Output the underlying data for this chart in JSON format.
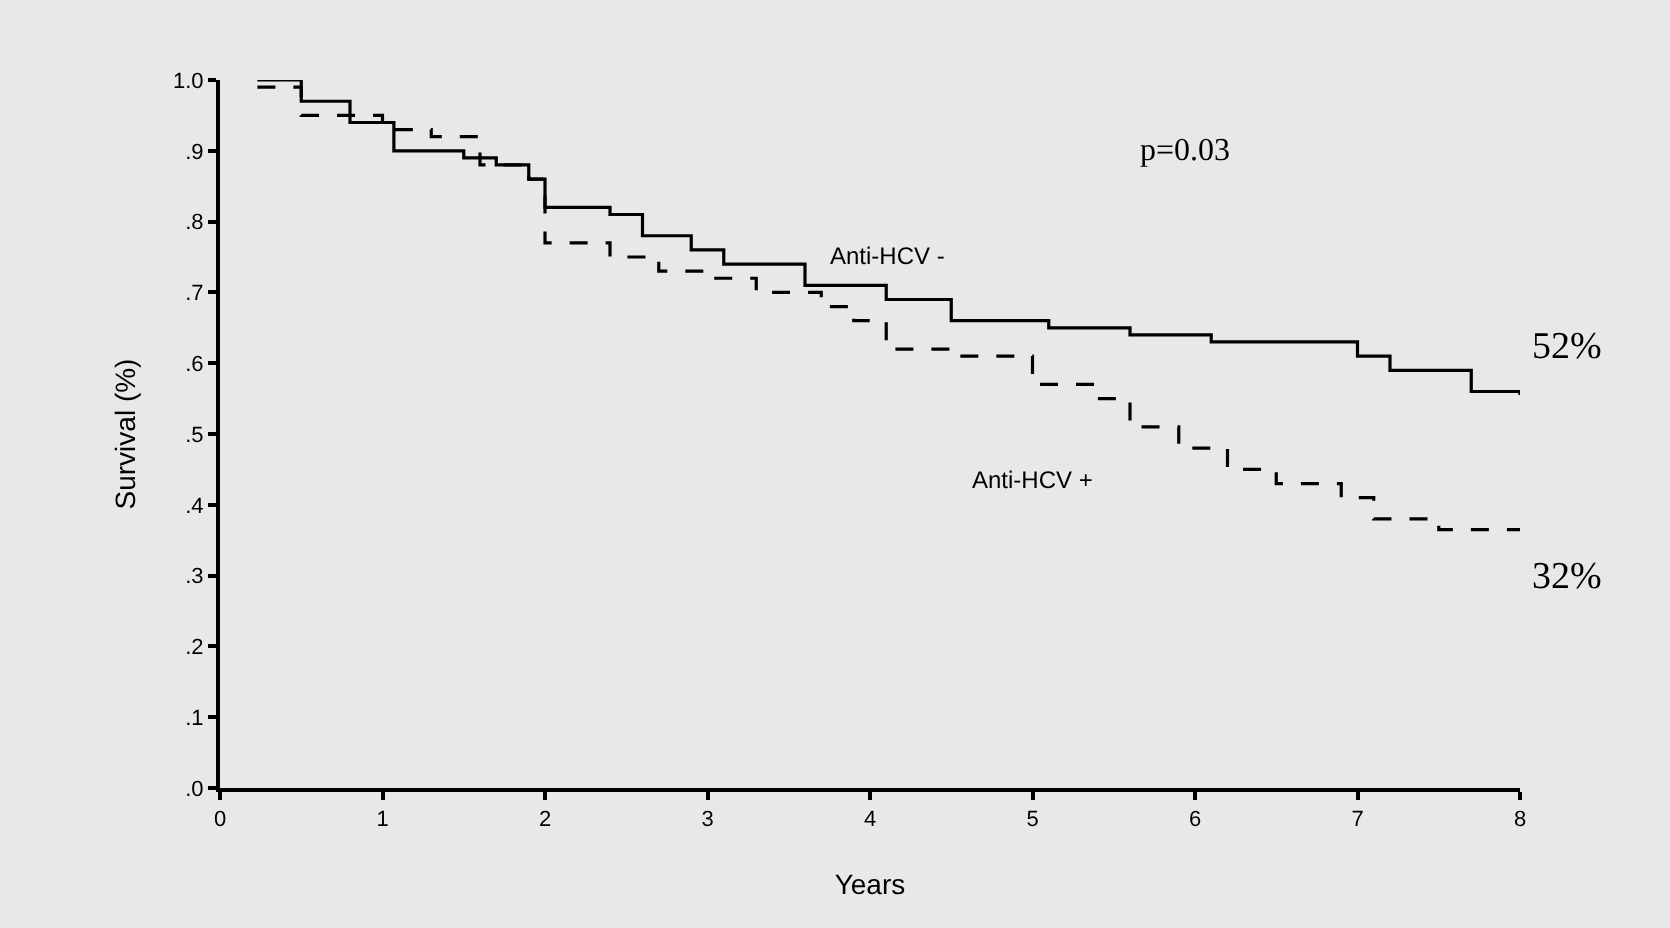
{
  "chart_data": {
    "type": "step",
    "xlabel": "Years",
    "ylabel": "Survival (%)",
    "xlim": [
      0,
      8
    ],
    "xticks": [
      0,
      1,
      2,
      3,
      4,
      5,
      6,
      7,
      8
    ],
    "ylim": [
      0,
      1.0
    ],
    "yticks": [
      {
        "value": 0,
        "label": ".0"
      },
      {
        "value": 0.1,
        "label": ".1"
      },
      {
        "value": 0.2,
        "label": ".2"
      },
      {
        "value": 0.3,
        "label": ".3"
      },
      {
        "value": 0.4,
        "label": ".4"
      },
      {
        "value": 0.5,
        "label": ".5"
      },
      {
        "value": 0.6,
        "label": ".6"
      },
      {
        "value": 0.7,
        "label": ".7"
      },
      {
        "value": 0.8,
        "label": ".8"
      },
      {
        "value": 0.9,
        "label": ".9"
      },
      {
        "value": 1.0,
        "label": "1.0"
      }
    ],
    "grid": false,
    "legend": false,
    "series": [
      {
        "name": "Anti-HCV -",
        "color": "#000000",
        "line_style": "solid",
        "x": [
          0.23,
          0.5,
          0.8,
          1.07,
          1.5,
          1.7,
          1.9,
          2.0,
          2.4,
          2.6,
          2.9,
          3.1,
          3.6,
          4.1,
          4.5,
          5.1,
          5.6,
          6.1,
          7.0,
          7.2,
          7.7,
          8.0
        ],
        "values": [
          1.0,
          0.97,
          0.94,
          0.9,
          0.89,
          0.88,
          0.86,
          0.82,
          0.81,
          0.78,
          0.76,
          0.74,
          0.71,
          0.69,
          0.66,
          0.65,
          0.64,
          0.63,
          0.61,
          0.59,
          0.56,
          0.555
        ]
      },
      {
        "name": "Anti-HCV +",
        "color": "#000000",
        "line_style": "dashed",
        "x": [
          0.23,
          0.5,
          1.0,
          1.3,
          1.6,
          1.9,
          2.0,
          2.4,
          2.7,
          3.0,
          3.3,
          3.7,
          3.9,
          4.1,
          4.5,
          5.0,
          5.4,
          5.6,
          5.9,
          6.2,
          6.5,
          6.9,
          7.1,
          7.5,
          8.0
        ],
        "values": [
          0.99,
          0.95,
          0.93,
          0.92,
          0.88,
          0.86,
          0.77,
          0.75,
          0.73,
          0.72,
          0.7,
          0.68,
          0.66,
          0.62,
          0.61,
          0.57,
          0.55,
          0.51,
          0.48,
          0.45,
          0.43,
          0.41,
          0.38,
          0.365,
          0.365
        ]
      }
    ],
    "annotations": [
      "p=0.03",
      {
        "text": "52%",
        "x": 8,
        "y": 0.555
      },
      {
        "text": "32%",
        "x": 8,
        "y": 0.365
      }
    ]
  }
}
